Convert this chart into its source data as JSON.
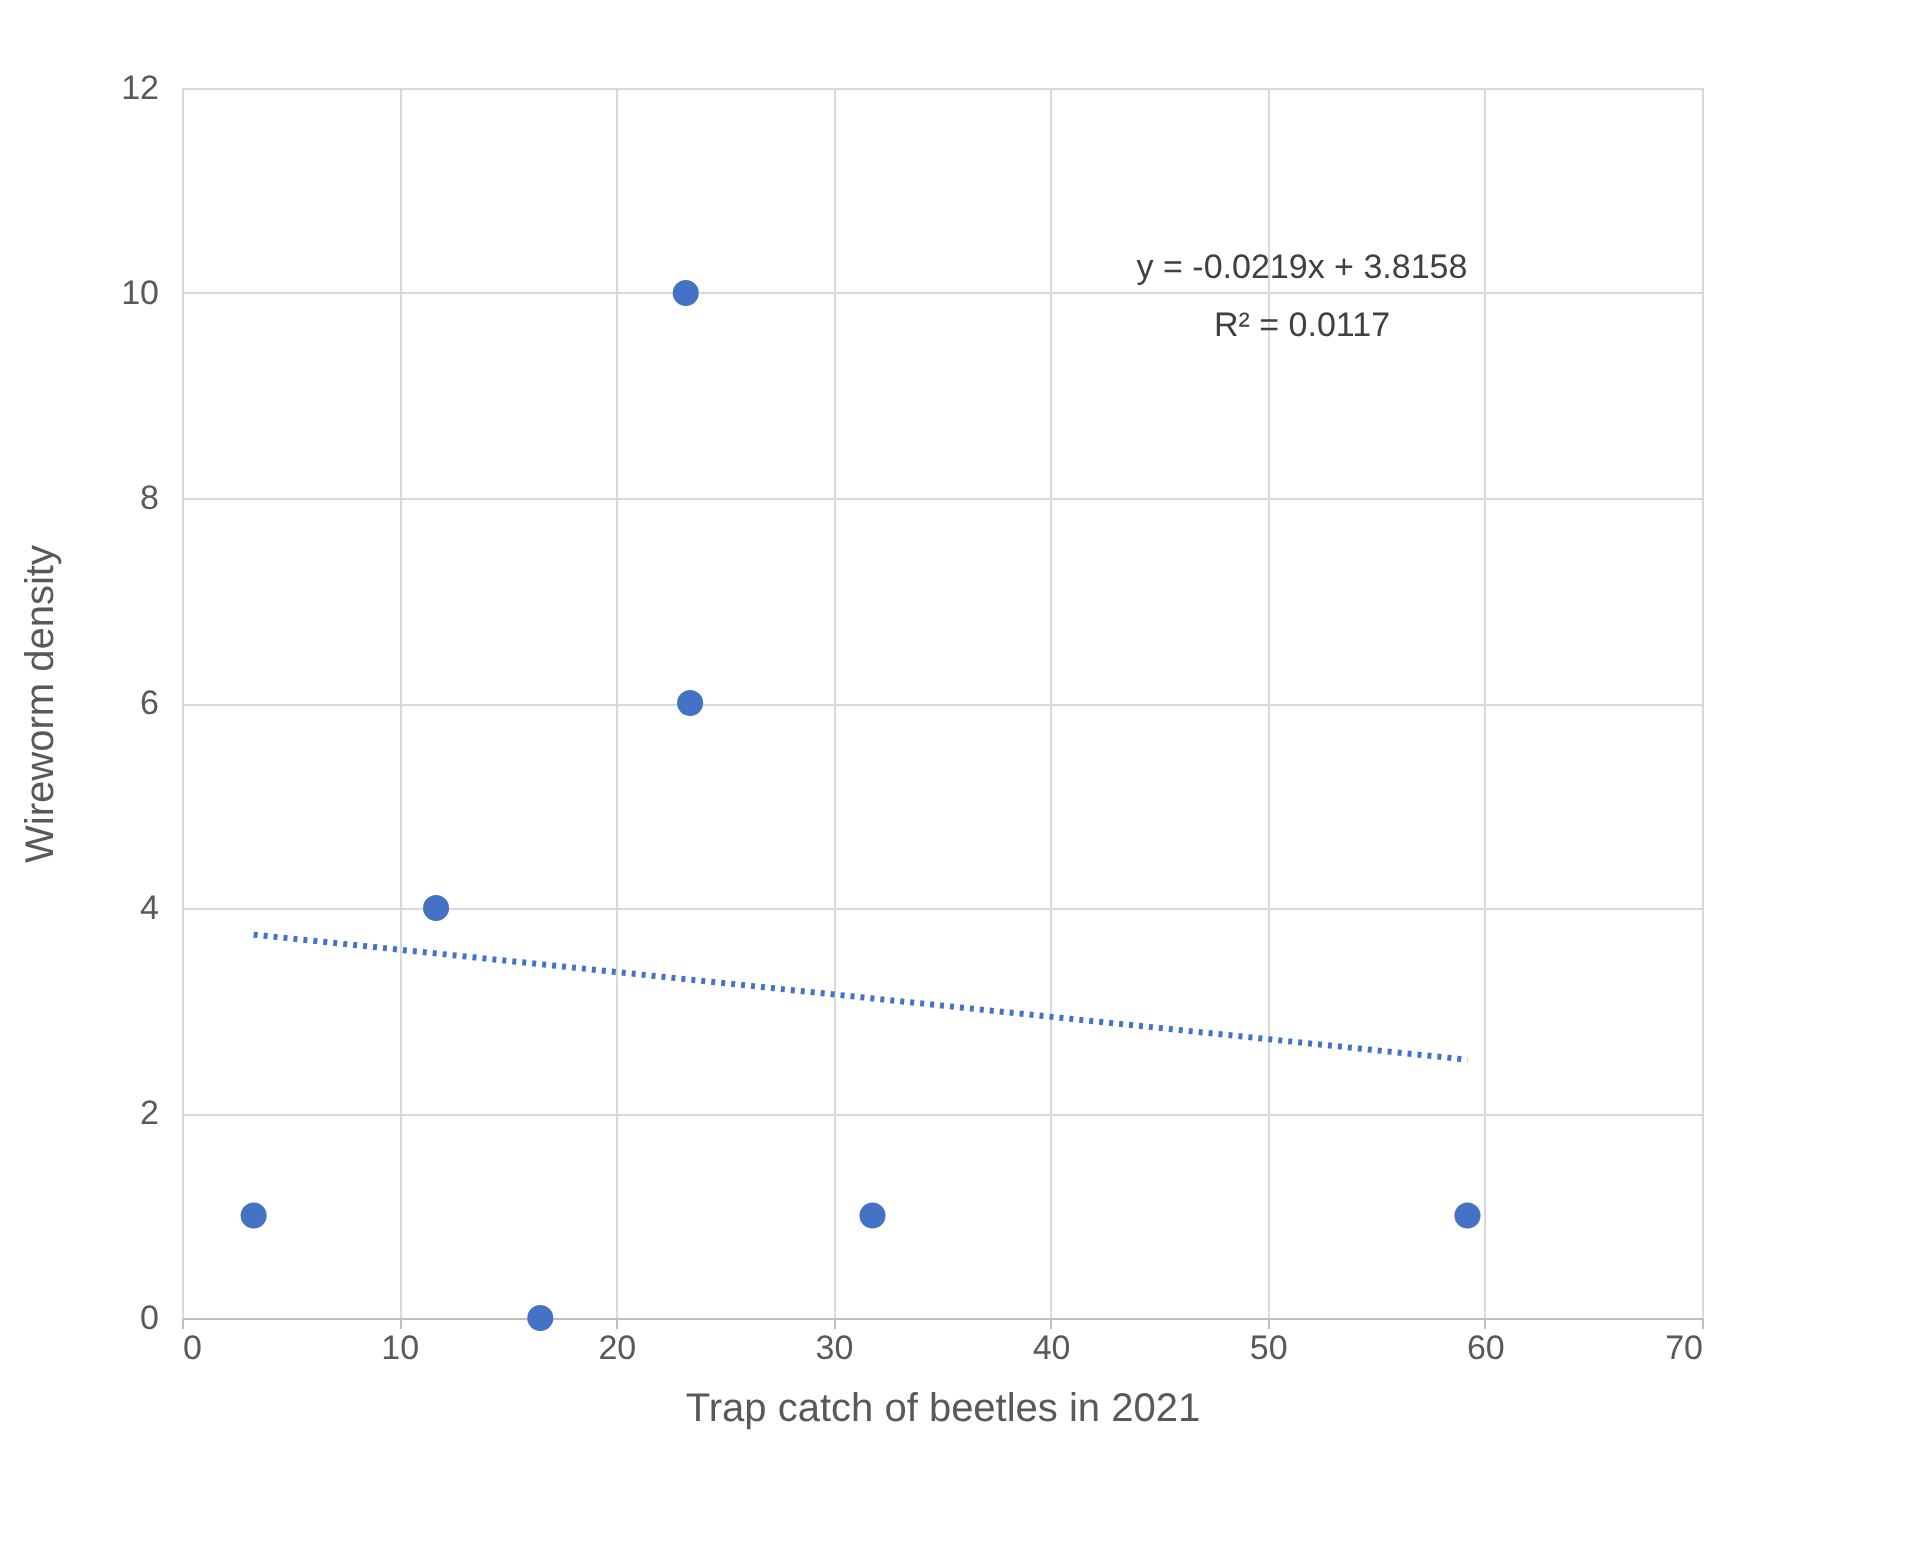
{
  "chart_data": {
    "type": "scatter",
    "xlabel": "Trap catch of beetles in 2021",
    "ylabel": "Wireworm density",
    "x": [
      3.3,
      11.7,
      16.5,
      23.2,
      23.4,
      31.8,
      59.2
    ],
    "series": [
      {
        "color": "#4472c4",
        "values": [
          1,
          4,
          0,
          10,
          6,
          1,
          1
        ],
        "marker": "circle"
      },
      {
        "type": "line",
        "x": [
          3.3,
          59.2
        ],
        "values": [
          3.74,
          2.52
        ],
        "color": "#4472c4",
        "line_style": "dotted",
        "marker": "none"
      }
    ],
    "xlim": [
      0,
      70
    ],
    "xticks": [
      0,
      10,
      20,
      30,
      40,
      50,
      60,
      70
    ],
    "ylim": [
      0,
      12
    ],
    "yticks": [
      0,
      2,
      4,
      6,
      8,
      10,
      12
    ],
    "grid": true,
    "annotations": [
      "y = -0.0219x + 3.8158",
      "R² = 0.0117"
    ]
  }
}
